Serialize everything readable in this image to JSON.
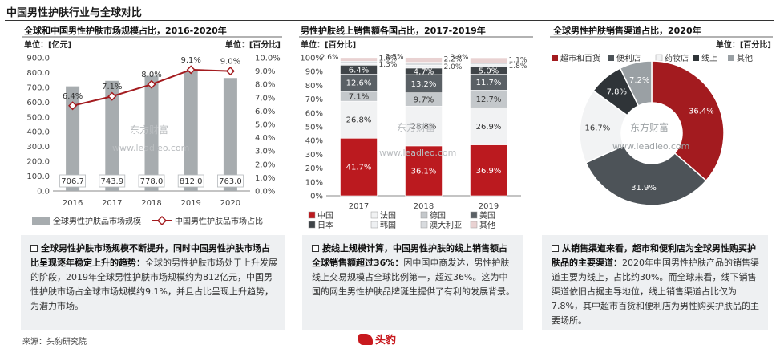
{
  "page": {
    "title": "中国男性护肤行业与全球对比",
    "source": "来源：头豹研究院",
    "logo": "头豹"
  },
  "watermark": {
    "cn": "东方财富",
    "url": "www.leadleo.com"
  },
  "colors": {
    "dark_red": "#a31b1f",
    "gray_bar": "#a7acaf",
    "dark_gray": "#4d5358",
    "mid_gray": "#6f757a",
    "light_gray": "#d9dcde",
    "white_fill": "#f4f5f6",
    "text_box_bg": "#eef0f2"
  },
  "chart_data": [
    {
      "type": "bar",
      "title": "全球和中国男性护肤市场规模占比，2016-2020年",
      "unit_left": "单位：[亿元]",
      "unit_right": "单位：[百分比]",
      "categories": [
        "2016",
        "2017",
        "2018",
        "2019",
        "2020"
      ],
      "y_ticks_left": [
        "0.0",
        "100.0",
        "200.0",
        "300.0",
        "400.0",
        "500.0",
        "600.0",
        "700.0",
        "800.0",
        "900.0"
      ],
      "y_ticks_right": [
        "0.0%",
        "1.0%",
        "2.0%",
        "3.0%",
        "4.0%",
        "5.0%",
        "6.0%",
        "7.0%",
        "8.0%",
        "9.0%",
        "10.0%"
      ],
      "ylim_left": [
        0,
        900
      ],
      "ylim_right": [
        0,
        10
      ],
      "series": [
        {
          "name": "全球男性护肤品市场规模",
          "kind": "bar",
          "values": [
            706.7,
            743.9,
            778.0,
            812.0,
            763.0
          ],
          "labels": [
            "706.7",
            "743.9",
            "778.0",
            "812.0",
            "763.0"
          ]
        },
        {
          "name": "中国男性护肤品市场占比",
          "kind": "line",
          "values": [
            6.4,
            7.1,
            8.0,
            9.1,
            9.0
          ],
          "labels": [
            "6.4%",
            "7.1%",
            "8.0%",
            "9.1%",
            "9.0%"
          ]
        }
      ],
      "legend_position": "bottom"
    },
    {
      "type": "bar",
      "stacked": true,
      "title": "男性护肤线上销售额各国占比，2017-2019年",
      "unit": "单位：[百分比]",
      "categories": [
        "2017",
        "2018",
        "2019"
      ],
      "y_ticks": [
        "0%",
        "10%",
        "20%",
        "30%",
        "40%",
        "50%",
        "60%",
        "70%",
        "80%",
        "90%",
        "100%"
      ],
      "ylim": [
        0,
        100
      ],
      "series": [
        {
          "name": "中国",
          "values": [
            41.7,
            36.1,
            36.9
          ],
          "labels": [
            "41.7%",
            "36.1%",
            "36.9%"
          ]
        },
        {
          "name": "法国",
          "values": [
            26.8,
            28.8,
            26.9
          ],
          "labels": [
            "26.8%",
            "28.8%",
            "26.9%"
          ]
        },
        {
          "name": "德国",
          "values": [
            7.1,
            9.7,
            12.7
          ],
          "labels": [
            "7.1%",
            "9.7%",
            "12.7%"
          ]
        },
        {
          "name": "美国",
          "values": [
            12.6,
            13.2,
            11.7
          ],
          "labels": [
            "12.6%",
            "13.2%",
            "11.7%"
          ]
        },
        {
          "name": "日本",
          "values": [
            6.4,
            4.7,
            5.0
          ],
          "labels": [
            "6.4%",
            "4.7%",
            "5.0%"
          ]
        },
        {
          "name": "韩国",
          "values": [
            1.3,
            2.0,
            1.8
          ],
          "labels": [
            "1.3%",
            "2.0%",
            "1.8%"
          ]
        },
        {
          "name": "澳大利亚",
          "values": [
            1.6,
            2.2,
            1.1
          ],
          "labels": [
            "1.6%",
            "2.2%",
            "1.1%"
          ]
        },
        {
          "name": "其他",
          "values": [
            2.6,
            3.5,
            3.9
          ],
          "labels": [
            "2.6%",
            "3.5%",
            "3.9%"
          ]
        }
      ],
      "legend_position": "bottom"
    },
    {
      "type": "pie",
      "donut": true,
      "title": "全球男性护肤销售渠道占比，2020年",
      "unit": "单位：[百分比]",
      "slices": [
        {
          "name": "超市和百货",
          "value": 36.4,
          "label": "36.4%"
        },
        {
          "name": "便利店",
          "value": 31.9,
          "label": "31.9%"
        },
        {
          "name": "药妆店",
          "value": 16.7,
          "label": "16.7%"
        },
        {
          "name": "线上",
          "value": 7.8,
          "label": "7.8%"
        },
        {
          "name": "其他",
          "value": 7.2,
          "label": "7.2%"
        }
      ],
      "legend_position": "top"
    }
  ],
  "panels": [
    {
      "bold": "全球男性护肤市场规模不断提升，同时中国男性护肤市场占比呈现逐年稳定上升的趋势：",
      "text": "全球的男性护肤市场处于上升发展的阶段，2019年全球男性护肤市场规模约为812亿元，中国男性护肤市场占全球市场规模约9.1%，并且占比呈现上升趋势，为潜力市场。"
    },
    {
      "bold": "按线上规模计算，中国男性护肤的线上销售额占全球销售额超过36%：",
      "text": "因中国电商发达，男性护肤线上交易规模占全球比例第一，超过36%。这为中国的网生男性护肤品牌诞生提供了有利的发展背景。"
    },
    {
      "bold": "从销售渠道来看，超市和便利店为全球男性购买护肤品的主要渠道：",
      "text": "2020年中国男性护肤产品的销售渠道主要为线上，占比约30%。而全球来看，线下销售渠道依旧占据主导地位，线上销售渠道占比仅为7.8%，其中超市百货和便利店为男性购买护肤品的主要场所。"
    }
  ]
}
